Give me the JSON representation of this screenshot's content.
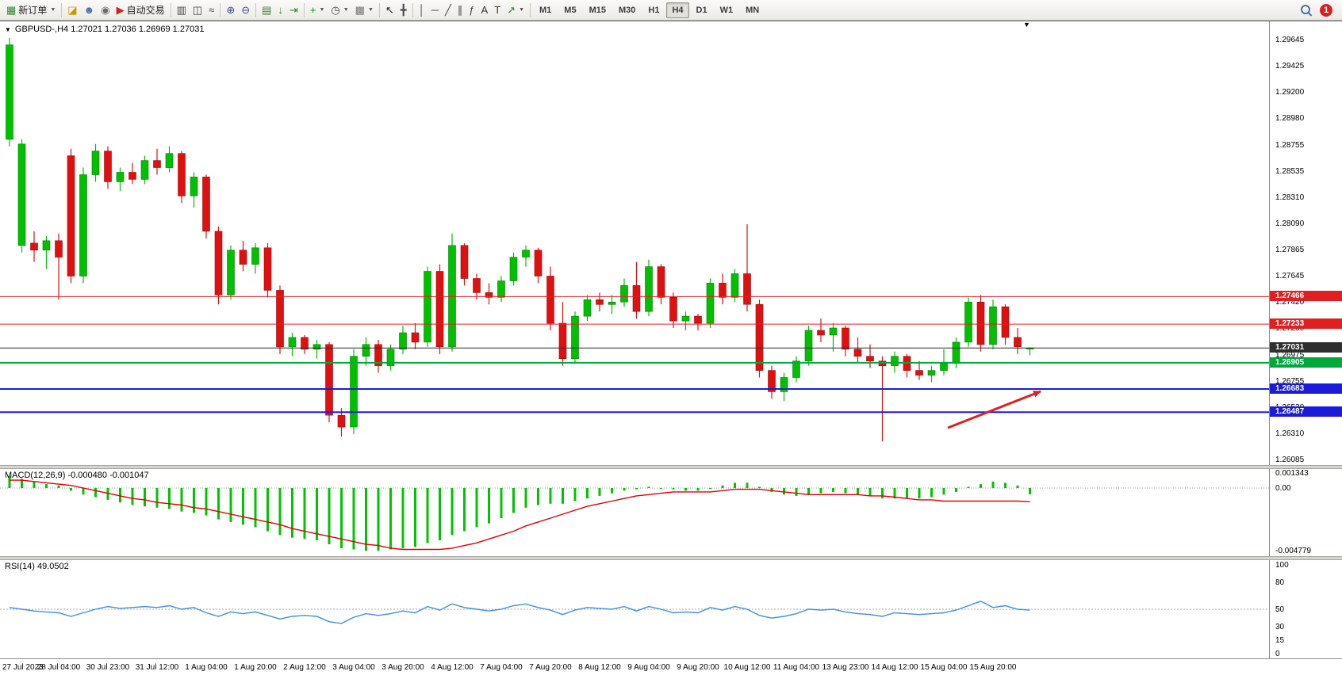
{
  "icons": {
    "dropdown_caret": "▼",
    "symbol_dropdown": "▼",
    "shift_marker": "▼"
  },
  "toolbar": {
    "items": [
      {
        "name": "new-order-button",
        "glyph": "▦",
        "color": "#2e8b2e",
        "label": "新订单",
        "caret": true
      },
      {
        "sep": true
      },
      {
        "name": "quotes-window-button",
        "glyph": "◪",
        "color": "#c89a00"
      },
      {
        "name": "profile-button",
        "glyph": "☻",
        "color": "#4a6fa5"
      },
      {
        "name": "community-button",
        "glyph": "◉",
        "color": "#6a6a6a"
      },
      {
        "name": "autotrading-button",
        "glyph": "▶",
        "color": "#cc2222",
        "label": "自动交易"
      },
      {
        "sep": true
      },
      {
        "name": "bar-chart-button",
        "glyph": "▥",
        "color": "#444444"
      },
      {
        "name": "candlestick-chart-button",
        "glyph": "◫",
        "color": "#444444"
      },
      {
        "name": "line-chart-button",
        "glyph": "≈",
        "color": "#444444"
      },
      {
        "sep": true
      },
      {
        "name": "zoom-in-button",
        "glyph": "⊕",
        "color": "#38508c"
      },
      {
        "name": "zoom-out-button",
        "glyph": "⊖",
        "color": "#38508c"
      },
      {
        "sep": true
      },
      {
        "name": "tile-windows-button",
        "glyph": "▤",
        "color": "#3c7a3c"
      },
      {
        "name": "auto-scroll-button",
        "glyph": "↓",
        "color": "#2d8a2d"
      },
      {
        "name": "chart-shift-button",
        "glyph": "⇥",
        "color": "#2d8a2d"
      },
      {
        "sep": true
      },
      {
        "name": "indicators-button",
        "glyph": "+",
        "color": "#0a9a0a",
        "caret": true
      },
      {
        "name": "periods-button",
        "glyph": "◷",
        "color": "#444444",
        "caret": true
      },
      {
        "name": "templates-button",
        "glyph": "▩",
        "color": "#777777",
        "caret": true
      },
      {
        "sep": true
      },
      {
        "name": "cursor-button",
        "glyph": "↖",
        "color": "#222222"
      },
      {
        "name": "crosshair-button",
        "glyph": "╋",
        "color": "#444444"
      },
      {
        "sep": true
      },
      {
        "name": "vertical-line-button",
        "glyph": "│",
        "color": "#444444"
      },
      {
        "name": "horizontal-line-button",
        "glyph": "─",
        "color": "#444444"
      },
      {
        "name": "trendline-button",
        "glyph": "╱",
        "color": "#444444"
      },
      {
        "name": "channel-button",
        "glyph": "∥",
        "color": "#444444"
      },
      {
        "name": "fibonacci-button",
        "glyph": "ƒ",
        "color": "#444444"
      },
      {
        "name": "text-button",
        "glyph": "A",
        "color": "#333333"
      },
      {
        "name": "label-button",
        "glyph": "T",
        "color": "#333333"
      },
      {
        "name": "arrows-button",
        "glyph": "↗",
        "color": "#2d8a2d",
        "caret": true
      },
      {
        "sep": true
      }
    ],
    "timeframes": [
      "M1",
      "M5",
      "M15",
      "M30",
      "H1",
      "H4",
      "D1",
      "W1",
      "MN"
    ],
    "active_timeframe": "H4",
    "notification_count": "1"
  },
  "chart": {
    "title": "GBPUSD-,H4 1.27021 1.27036 1.26969 1.27031",
    "symbol": "GBPUSD-",
    "timeframe": "H4",
    "open": "1.27021",
    "high": "1.27036",
    "low": "1.26969",
    "close": "1.27031"
  },
  "panels": {
    "macd_label": "MACD(12,26,9) -0.000480 -0.001047",
    "rsi_label": "RSI(14) 49.0502"
  },
  "chart_data": [
    {
      "type": "candlestick",
      "title": "GBPUSD- H4",
      "ylim": [
        1.26085,
        1.29645
      ],
      "up_color": "#00c000",
      "down_color": "#e01010",
      "up_border": "#067d06",
      "down_border": "#8f0f0f",
      "y_ticks": [
        "1.29645",
        "1.29425",
        "1.29200",
        "1.28980",
        "1.28755",
        "1.28535",
        "1.28310",
        "1.28090",
        "1.27865",
        "1.27645",
        "1.27420",
        "1.27200",
        "1.26975",
        "1.26755",
        "1.26530",
        "1.26310",
        "1.26085"
      ],
      "x_labels": [
        "27 Jul 2023",
        "28 Jul 04:00",
        "30 Jul 23:00",
        "31 Jul 12:00",
        "1 Aug 04:00",
        "1 Aug 20:00",
        "2 Aug 12:00",
        "3 Aug 04:00",
        "3 Aug 20:00",
        "4 Aug 12:00",
        "7 Aug 04:00",
        "7 Aug 20:00",
        "8 Aug 12:00",
        "9 Aug 04:00",
        "9 Aug 20:00",
        "10 Aug 12:00",
        "11 Aug 04:00",
        "13 Aug 23:00",
        "14 Aug 12:00",
        "15 Aug 04:00",
        "15 Aug 20:00"
      ],
      "label_every": 4,
      "candles": [
        [
          1.288,
          1.2966,
          1.2874,
          1.296
        ],
        [
          1.279,
          1.288,
          1.2784,
          1.2876
        ],
        [
          1.2792,
          1.2802,
          1.2776,
          1.2786
        ],
        [
          1.2786,
          1.2798,
          1.277,
          1.2794
        ],
        [
          1.2794,
          1.28,
          1.2744,
          1.278
        ],
        [
          1.2866,
          1.2872,
          1.2758,
          1.2764
        ],
        [
          1.2764,
          1.2856,
          1.2758,
          1.285
        ],
        [
          1.285,
          1.2876,
          1.2844,
          1.287
        ],
        [
          1.287,
          1.2874,
          1.2838,
          1.2844
        ],
        [
          1.2844,
          1.2856,
          1.2836,
          1.2852
        ],
        [
          1.2852,
          1.286,
          1.2842,
          1.2846
        ],
        [
          1.2846,
          1.2866,
          1.2842,
          1.2862
        ],
        [
          1.2862,
          1.2872,
          1.285,
          1.2856
        ],
        [
          1.2856,
          1.2874,
          1.2852,
          1.2868
        ],
        [
          1.2868,
          1.287,
          1.2826,
          1.2832
        ],
        [
          1.2832,
          1.2852,
          1.2822,
          1.2848
        ],
        [
          1.2848,
          1.285,
          1.2796,
          1.2802
        ],
        [
          1.2802,
          1.2806,
          1.274,
          1.2748
        ],
        [
          1.2748,
          1.279,
          1.2744,
          1.2786
        ],
        [
          1.2786,
          1.2794,
          1.2768,
          1.2774
        ],
        [
          1.2774,
          1.2792,
          1.2766,
          1.2788
        ],
        [
          1.2788,
          1.2792,
          1.2746,
          1.2752
        ],
        [
          1.2752,
          1.2756,
          1.2698,
          1.2704
        ],
        [
          1.2704,
          1.2716,
          1.2696,
          1.2712
        ],
        [
          1.2712,
          1.2714,
          1.2698,
          1.2702
        ],
        [
          1.2702,
          1.271,
          1.2694,
          1.2706
        ],
        [
          1.2706,
          1.2708,
          1.264,
          1.2646
        ],
        [
          1.2646,
          1.2652,
          1.2628,
          1.2636
        ],
        [
          1.2636,
          1.2702,
          1.263,
          1.2696
        ],
        [
          1.2696,
          1.2712,
          1.2688,
          1.2706
        ],
        [
          1.2706,
          1.271,
          1.2682,
          1.2688
        ],
        [
          1.2688,
          1.2706,
          1.2684,
          1.2702
        ],
        [
          1.2702,
          1.2722,
          1.2698,
          1.2716
        ],
        [
          1.2716,
          1.2724,
          1.2702,
          1.2708
        ],
        [
          1.2708,
          1.2772,
          1.2704,
          1.2768
        ],
        [
          1.2768,
          1.2774,
          1.2698,
          1.2704
        ],
        [
          1.2704,
          1.28,
          1.27,
          1.279
        ],
        [
          1.279,
          1.2792,
          1.2756,
          1.2762
        ],
        [
          1.2762,
          1.2766,
          1.2744,
          1.275
        ],
        [
          1.275,
          1.2758,
          1.274,
          1.2746
        ],
        [
          1.2746,
          1.2764,
          1.2742,
          1.276
        ],
        [
          1.276,
          1.2784,
          1.2756,
          1.278
        ],
        [
          1.278,
          1.279,
          1.2772,
          1.2786
        ],
        [
          1.2786,
          1.2788,
          1.2758,
          1.2764
        ],
        [
          1.2764,
          1.2772,
          1.2718,
          1.2724
        ],
        [
          1.2724,
          1.2742,
          1.2688,
          1.2694
        ],
        [
          1.2694,
          1.2734,
          1.269,
          1.273
        ],
        [
          1.273,
          1.2748,
          1.2726,
          1.2744
        ],
        [
          1.2744,
          1.275,
          1.2734,
          1.274
        ],
        [
          1.274,
          1.2748,
          1.2732,
          1.2742
        ],
        [
          1.2742,
          1.2762,
          1.2738,
          1.2756
        ],
        [
          1.2756,
          1.2776,
          1.2728,
          1.2734
        ],
        [
          1.2734,
          1.2778,
          1.273,
          1.2772
        ],
        [
          1.2772,
          1.2774,
          1.274,
          1.2746
        ],
        [
          1.2746,
          1.275,
          1.272,
          1.2726
        ],
        [
          1.2726,
          1.2734,
          1.2718,
          1.273
        ],
        [
          1.273,
          1.2732,
          1.2718,
          1.2724
        ],
        [
          1.2724,
          1.2762,
          1.272,
          1.2758
        ],
        [
          1.2758,
          1.2766,
          1.274,
          1.2746
        ],
        [
          1.2746,
          1.277,
          1.2742,
          1.2766
        ],
        [
          1.2766,
          1.2808,
          1.2734,
          1.274
        ],
        [
          1.274,
          1.2744,
          1.2678,
          1.2684
        ],
        [
          1.2684,
          1.2688,
          1.266,
          1.2666
        ],
        [
          1.2666,
          1.2682,
          1.2658,
          1.2678
        ],
        [
          1.2678,
          1.2696,
          1.2674,
          1.2692
        ],
        [
          1.2692,
          1.2722,
          1.2688,
          1.2718
        ],
        [
          1.2718,
          1.2728,
          1.2708,
          1.2714
        ],
        [
          1.2714,
          1.2724,
          1.27,
          1.272
        ],
        [
          1.272,
          1.2722,
          1.2696,
          1.2702
        ],
        [
          1.2702,
          1.2712,
          1.269,
          1.2696
        ],
        [
          1.2696,
          1.2706,
          1.2686,
          1.2692
        ],
        [
          1.2692,
          1.2696,
          1.2624,
          1.2688
        ],
        [
          1.2688,
          1.27,
          1.2682,
          1.2696
        ],
        [
          1.2696,
          1.2698,
          1.2678,
          1.2684
        ],
        [
          1.2684,
          1.2692,
          1.2676,
          1.268
        ],
        [
          1.268,
          1.2688,
          1.2674,
          1.2684
        ],
        [
          1.2684,
          1.2702,
          1.268,
          1.269
        ],
        [
          1.269,
          1.2712,
          1.2686,
          1.2708
        ],
        [
          1.2708,
          1.2746,
          1.2704,
          1.2742
        ],
        [
          1.2742,
          1.2748,
          1.27,
          1.2706
        ],
        [
          1.2706,
          1.2744,
          1.2702,
          1.2738
        ],
        [
          1.2738,
          1.274,
          1.2706,
          1.2712
        ],
        [
          1.2712,
          1.272,
          1.2698,
          1.2704
        ],
        [
          1.27021,
          1.27036,
          1.26969,
          1.27031
        ]
      ],
      "hlines": [
        {
          "price": 1.27466,
          "label": "1.27466",
          "color": "#e02020",
          "width": 1
        },
        {
          "price": 1.27233,
          "label": "1.27233",
          "color": "#e02020",
          "width": 1
        },
        {
          "price": 1.27031,
          "label": "1.27031",
          "color": "#2f2f2f",
          "width": 1
        },
        {
          "price": 1.26905,
          "label": "1.26905",
          "color": "#00a83c",
          "width": 2
        },
        {
          "price": 1.26683,
          "label": "1.26683",
          "color": "#1c1cd8",
          "width": 2
        },
        {
          "price": 1.26487,
          "label": "1.26487",
          "color": "#1c1cd8",
          "width": 2
        }
      ],
      "annotation": {
        "shape": "arrow",
        "color": "#dd2222",
        "from": {
          "x": 1195,
          "y": 513
        },
        "to": {
          "x": 1312,
          "y": 467
        }
      }
    },
    {
      "type": "bar",
      "name": "MACD(12,26,9) histogram",
      "color": "#00c400",
      "ylim": [
        -0.004779,
        0.001343
      ],
      "y_ticks": [
        "0.001343",
        "0.00",
        "-0.004779"
      ],
      "values": [
        0.0009,
        0.0007,
        0.0005,
        0.0003,
        0.0002,
        -0.0002,
        -0.0005,
        -0.0007,
        -0.0009,
        -0.0011,
        -0.0013,
        -0.0014,
        -0.0015,
        -0.0016,
        -0.0018,
        -0.0019,
        -0.0021,
        -0.0024,
        -0.0026,
        -0.0028,
        -0.003,
        -0.0033,
        -0.0036,
        -0.0038,
        -0.0039,
        -0.004,
        -0.0043,
        -0.0046,
        -0.0047,
        -0.0048,
        -0.0048,
        -0.0047,
        -0.0046,
        -0.0045,
        -0.0042,
        -0.004,
        -0.0036,
        -0.0033,
        -0.003,
        -0.0027,
        -0.0023,
        -0.0019,
        -0.0015,
        -0.0013,
        -0.0012,
        -0.0012,
        -0.001,
        -0.0008,
        -0.0006,
        -0.0004,
        -0.0002,
        -0.0001,
        0.0001,
        0.0,
        -0.0001,
        -0.0002,
        -0.0002,
        0.0,
        0.0002,
        0.0004,
        0.0004,
        0.0001,
        -0.0003,
        -0.0005,
        -0.0006,
        -0.0005,
        -0.0004,
        -0.0003,
        -0.0004,
        -0.0005,
        -0.0006,
        -0.0008,
        -0.0008,
        -0.0008,
        -0.0008,
        -0.0007,
        -0.0005,
        -0.0003,
        0.0001,
        0.0003,
        0.0005,
        0.0004,
        0.0002,
        -0.00048
      ],
      "signal": {
        "name": "signal line",
        "color": "#e00000",
        "values": [
          0.0006,
          0.0006,
          0.0005,
          0.0004,
          0.0003,
          0.0002,
          0.0,
          -0.0002,
          -0.0004,
          -0.0006,
          -0.0008,
          -0.0009,
          -0.0011,
          -0.0012,
          -0.0013,
          -0.0015,
          -0.0016,
          -0.0018,
          -0.002,
          -0.0022,
          -0.0024,
          -0.0026,
          -0.0028,
          -0.0031,
          -0.0033,
          -0.0035,
          -0.0037,
          -0.0039,
          -0.0041,
          -0.0043,
          -0.0044,
          -0.0046,
          -0.0047,
          -0.0047,
          -0.0047,
          -0.0047,
          -0.0046,
          -0.0044,
          -0.0042,
          -0.0039,
          -0.0036,
          -0.0033,
          -0.0029,
          -0.0026,
          -0.0023,
          -0.002,
          -0.0017,
          -0.0014,
          -0.0012,
          -0.001,
          -0.0008,
          -0.0006,
          -0.0005,
          -0.0004,
          -0.0003,
          -0.0003,
          -0.0003,
          -0.0003,
          -0.0002,
          -0.0001,
          -0.0001,
          -0.0001,
          -0.0002,
          -0.0003,
          -0.0004,
          -0.0005,
          -0.0005,
          -0.0005,
          -0.0005,
          -0.0005,
          -0.0006,
          -0.0006,
          -0.0007,
          -0.0008,
          -0.0009,
          -0.0009,
          -0.001,
          -0.001,
          -0.001,
          -0.001,
          -0.001,
          -0.001,
          -0.001,
          -0.001047
        ]
      }
    },
    {
      "type": "line",
      "name": "RSI(14)",
      "color": "#3f8fdf",
      "ylim": [
        0,
        100
      ],
      "y_ticks": [
        "100",
        "80",
        "50",
        "30",
        "15",
        "0"
      ],
      "level": 50,
      "values": [
        52,
        50,
        48,
        47,
        46,
        42,
        46,
        50,
        53,
        51,
        52,
        53,
        52,
        54,
        50,
        52,
        46,
        42,
        47,
        45,
        47,
        43,
        39,
        42,
        43,
        42,
        36,
        34,
        41,
        45,
        43,
        45,
        48,
        46,
        53,
        49,
        56,
        52,
        50,
        48,
        50,
        54,
        56,
        52,
        49,
        44,
        49,
        52,
        51,
        50,
        53,
        48,
        53,
        50,
        46,
        47,
        46,
        52,
        49,
        53,
        50,
        43,
        40,
        42,
        45,
        50,
        49,
        50,
        47,
        45,
        44,
        42,
        46,
        45,
        44,
        45,
        46,
        49,
        54,
        59,
        52,
        54,
        50,
        49.05
      ]
    }
  ]
}
